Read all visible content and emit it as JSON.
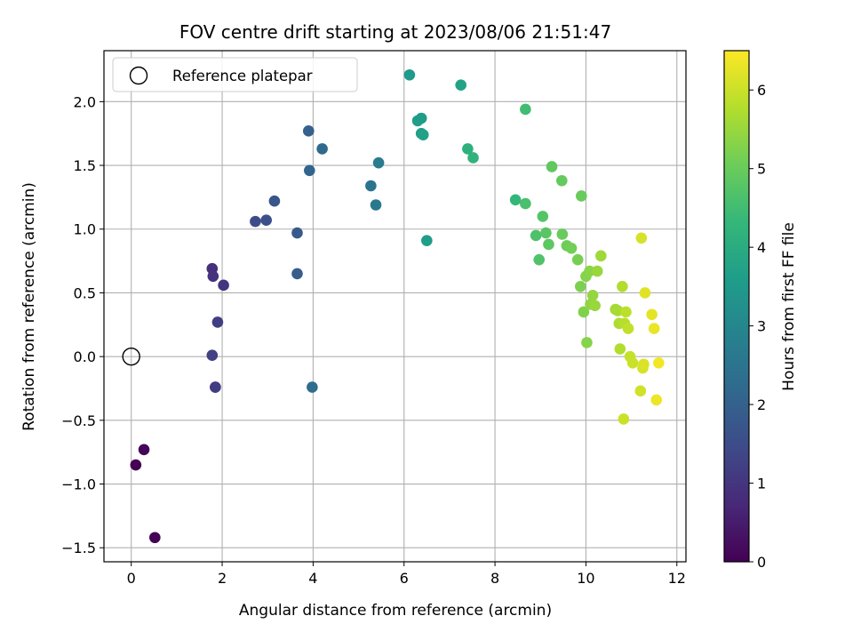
{
  "chart_data": {
    "type": "scatter",
    "title": "FOV centre drift starting at 2023/08/06 21:51:47",
    "xlabel": "Angular distance from reference (arcmin)",
    "ylabel": "Rotation from reference (arcmin)",
    "xlim": [
      -0.6,
      12.2
    ],
    "ylim": [
      -1.61,
      2.4
    ],
    "xticks": [
      0,
      2,
      4,
      6,
      8,
      10,
      12
    ],
    "yticks": [
      -1.5,
      -1.0,
      -0.5,
      0.0,
      0.5,
      1.0,
      1.5,
      2.0
    ],
    "xtick_labels": [
      "0",
      "2",
      "4",
      "6",
      "8",
      "10",
      "12"
    ],
    "ytick_labels": [
      "−1.5",
      "−1.0",
      "−0.5",
      "0.0",
      "0.5",
      "1.0",
      "1.5",
      "2.0"
    ],
    "grid": true,
    "legend": {
      "placement": "top-left",
      "entries": [
        "Reference platepar"
      ]
    },
    "reference_point": {
      "x": 0.0,
      "y": 0.0
    },
    "colorbar": {
      "label": "Hours from first FF file",
      "range": [
        0,
        6.5
      ],
      "ticks": [
        0,
        1,
        2,
        3,
        4,
        5,
        6
      ],
      "tick_labels": [
        "0",
        "1",
        "2",
        "3",
        "4",
        "5",
        "6"
      ],
      "colormap": "viridis"
    },
    "series": [
      {
        "x": [
          0.1,
          0.28,
          0.52,
          1.78,
          1.8,
          1.85,
          2.03,
          1.9,
          1.78,
          1.85,
          2.73,
          2.97,
          3.15,
          3.65,
          3.65,
          3.9,
          3.92,
          4.2,
          3.98,
          5.27,
          5.38,
          5.44,
          6.12,
          6.3,
          6.38,
          6.38,
          6.42,
          6.5,
          7.25,
          7.4,
          7.52,
          8.45,
          8.67,
          8.67,
          8.9,
          8.97,
          9.05,
          9.12,
          9.18,
          9.25,
          9.47,
          9.48,
          9.58,
          9.68,
          9.82,
          9.88,
          9.9,
          9.95,
          10.0,
          10.02,
          10.08,
          10.1,
          10.15,
          10.25,
          10.2,
          10.33,
          10.65,
          10.7,
          10.73,
          10.75,
          10.8,
          10.85,
          10.88,
          10.93,
          10.97,
          11.03,
          11.2,
          11.22,
          11.25,
          11.27,
          11.3,
          11.45,
          11.5,
          11.55,
          11.6,
          10.83
        ],
        "y": [
          -0.85,
          -0.73,
          -1.42,
          0.69,
          0.63,
          -0.24,
          0.56,
          0.27,
          0.01,
          -0.24,
          1.06,
          1.07,
          1.22,
          0.97,
          0.65,
          1.77,
          1.46,
          1.63,
          -0.24,
          1.34,
          1.19,
          1.52,
          2.21,
          1.85,
          1.87,
          1.75,
          1.74,
          0.91,
          2.13,
          1.63,
          1.56,
          1.23,
          1.94,
          1.2,
          0.95,
          0.76,
          1.1,
          0.97,
          0.88,
          1.49,
          1.38,
          0.96,
          0.87,
          0.85,
          0.76,
          0.55,
          1.26,
          0.35,
          0.63,
          0.11,
          0.67,
          0.41,
          0.48,
          0.67,
          0.4,
          0.79,
          0.37,
          0.36,
          0.26,
          0.06,
          0.55,
          0.26,
          0.35,
          0.22,
          0.0,
          -0.05,
          -0.27,
          0.93,
          -0.09,
          -0.06,
          0.5,
          0.33,
          0.22,
          -0.34,
          -0.05,
          -0.49
        ],
        "hours": [
          0.0,
          0.1,
          0.05,
          0.9,
          0.95,
          1.05,
          1.0,
          1.2,
          1.25,
          1.15,
          1.5,
          1.6,
          1.7,
          1.8,
          1.9,
          2.0,
          2.1,
          2.2,
          2.3,
          2.5,
          2.6,
          2.7,
          3.5,
          3.6,
          3.55,
          3.65,
          3.7,
          3.6,
          3.75,
          4.1,
          4.2,
          4.3,
          4.5,
          4.6,
          4.65,
          4.7,
          4.75,
          4.8,
          4.85,
          4.9,
          4.95,
          5.0,
          5.05,
          5.1,
          5.15,
          5.2,
          5.0,
          5.25,
          5.3,
          5.3,
          5.35,
          5.4,
          5.45,
          5.5,
          5.5,
          5.55,
          5.6,
          5.65,
          5.7,
          5.75,
          5.75,
          5.8,
          5.85,
          5.9,
          5.95,
          6.0,
          6.05,
          6.1,
          6.1,
          6.15,
          6.2,
          6.25,
          6.3,
          6.35,
          6.4,
          6.0
        ]
      }
    ]
  }
}
